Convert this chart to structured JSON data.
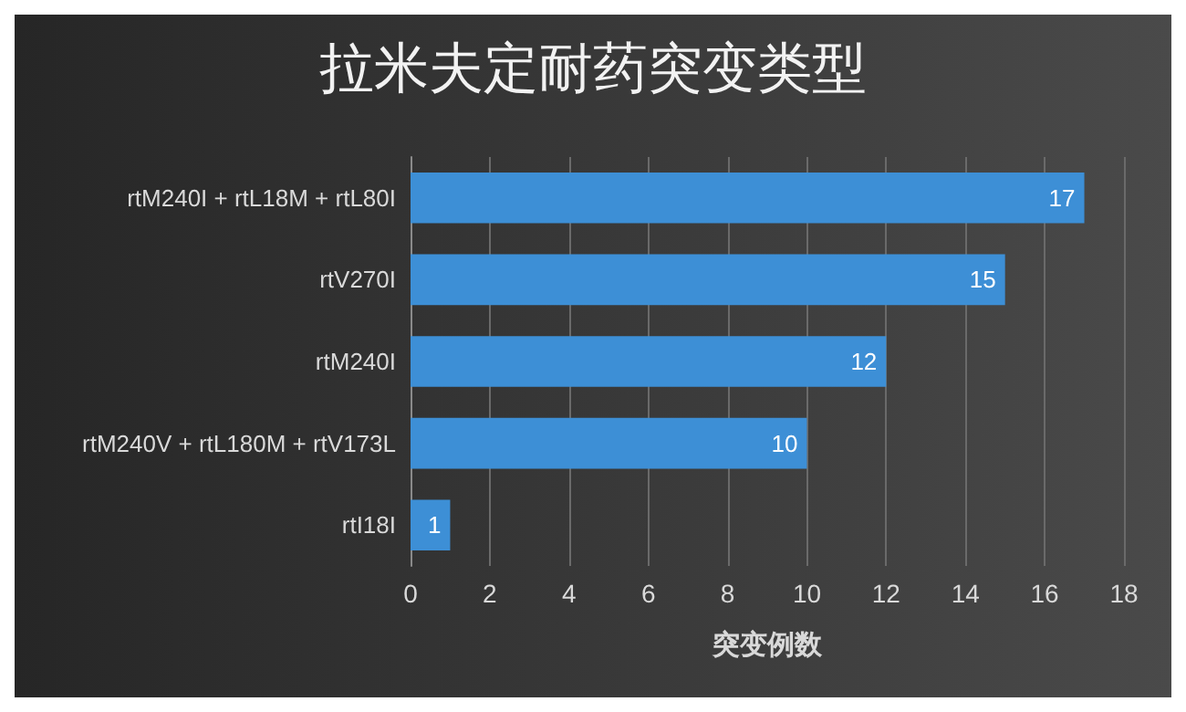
{
  "chart_data": {
    "type": "bar",
    "orientation": "horizontal",
    "title": "拉米夫定耐药突变类型",
    "xlabel": "突变例数",
    "categories": [
      "rtM240I + rtL18M + rtL80I",
      "rtV270I",
      "rtM240I",
      "rtM240V + rtL180M + rtV173L",
      "rtI18I"
    ],
    "values": [
      17,
      15,
      12,
      10,
      1
    ],
    "color": "#3d8fd6",
    "data_labels": true,
    "xlim": [
      0,
      18
    ],
    "xticks": [
      0,
      2,
      4,
      6,
      8,
      10,
      12,
      14,
      16,
      18
    ],
    "grid": "x"
  }
}
